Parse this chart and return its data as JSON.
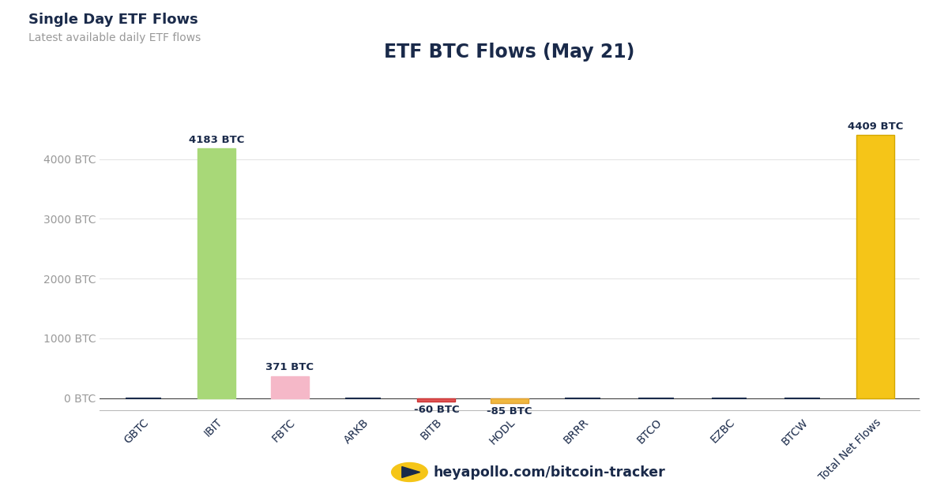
{
  "title": "ETF BTC Flows (May 21)",
  "suptitle": "Single Day ETF Flows",
  "subtitle": "Latest available daily ETF flows",
  "categories": [
    "GBTC",
    "IBIT",
    "FBTC",
    "ARKB",
    "BITB",
    "HODL",
    "BRRR",
    "BTCO",
    "EZBC",
    "BTCW",
    "Total Net Flows"
  ],
  "values": [
    0,
    4183,
    371,
    0,
    -60,
    -85,
    0,
    0,
    0,
    0,
    4409
  ],
  "bar_colors": [
    "#1a2a4a",
    "#a8d878",
    "#f5b8c8",
    "#1a2a4a",
    "#e05555",
    "#f0b840",
    "#1a2a4a",
    "#1a2a4a",
    "#1a2a4a",
    "#1a2a4a",
    "#f5c518"
  ],
  "bar_edge_colors": [
    "#1a2a4a",
    "#a8d878",
    "#f5b8c8",
    "#1a2a4a",
    "#cc3333",
    "#e0a030",
    "#1a2a4a",
    "#1a2a4a",
    "#1a2a4a",
    "#1a2a4a",
    "#d4a800"
  ],
  "bar_labels": [
    "",
    "4183 BTC",
    "371 BTC",
    "",
    "-60 BTC",
    "-85 BTC",
    "",
    "",
    "",
    "",
    "4409 BTC"
  ],
  "yticks": [
    0,
    1000,
    2000,
    3000,
    4000
  ],
  "ytick_labels": [
    "0 BTC",
    "1000 BTC",
    "2000 BTC",
    "3000 BTC",
    "4000 BTC"
  ],
  "ylim": [
    -200,
    4750
  ],
  "background_color": "#ffffff",
  "plot_bg_color": "#ffffff",
  "grid_color": "#e5e5e5",
  "axis_color": "#bbbbbb",
  "text_color": "#1a2a4a",
  "ytick_color": "#999999",
  "label_color": "#1a2a4a",
  "footer_text": "heyapollo.com/bitcoin-tracker",
  "title_fontsize": 17,
  "suptitle_fontsize": 13,
  "subtitle_fontsize": 10,
  "bar_width": 0.52
}
